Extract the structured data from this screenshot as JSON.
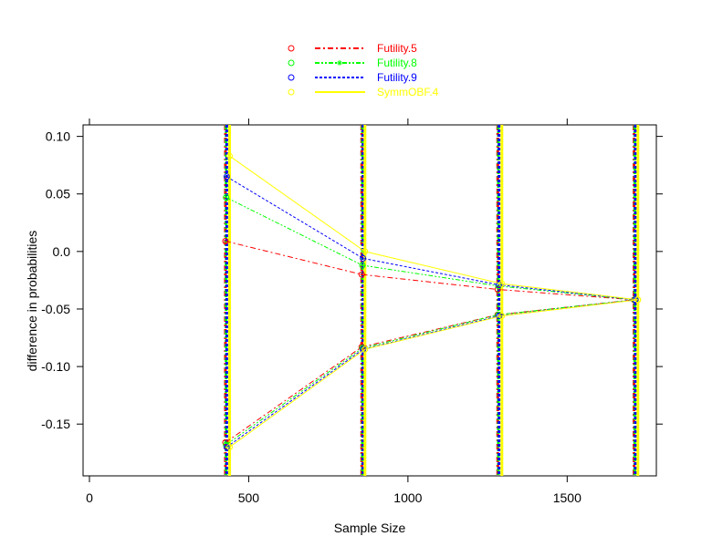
{
  "chart_data": {
    "type": "line",
    "title": "",
    "xlabel": "Sample Size",
    "ylabel": "difference in probabilities",
    "xlim": [
      -20,
      1780
    ],
    "ylim": [
      -0.195,
      0.11
    ],
    "xticks": [
      0,
      500,
      1000,
      1500
    ],
    "xtick_labels": [
      "0",
      "500",
      "1000",
      "1500"
    ],
    "yticks": [
      0.1,
      0.05,
      0.0,
      -0.05,
      -0.1,
      -0.15
    ],
    "ytick_labels": [
      "0.10",
      "0.05",
      "0.0",
      "-0.05",
      "-0.10",
      "-0.15"
    ],
    "grid": false,
    "legend_position": "top-center",
    "series": [
      {
        "name": "Futility.5",
        "color": "#ff0000",
        "line_style": "dash-dot",
        "x": [
          427,
          855,
          1282,
          1710
        ],
        "upper": [
          0.009,
          -0.02,
          -0.033,
          -0.042
        ],
        "lower": [
          -0.166,
          -0.083,
          -0.055,
          -0.042
        ]
      },
      {
        "name": "Futility.8",
        "color": "#00ff00",
        "line_style": "dash-dot-dot",
        "x": [
          429,
          857,
          1284,
          1712
        ],
        "upper": [
          0.047,
          -0.012,
          -0.03,
          -0.042
        ],
        "lower": [
          -0.168,
          -0.084,
          -0.055,
          -0.042
        ]
      },
      {
        "name": "Futility.9",
        "color": "#0000ff",
        "line_style": "dashed",
        "x": [
          431,
          859,
          1286,
          1714
        ],
        "upper": [
          0.065,
          -0.006,
          -0.029,
          -0.042
        ],
        "lower": [
          -0.17,
          -0.085,
          -0.056,
          -0.042
        ]
      },
      {
        "name": "SymmOBF.4",
        "color": "#ffff00",
        "line_style": "solid",
        "x": [
          440,
          865,
          1295,
          1722
        ],
        "upper": [
          0.083,
          0.0,
          -0.028,
          -0.042
        ],
        "lower": [
          -0.17,
          -0.085,
          -0.056,
          -0.042
        ]
      }
    ]
  }
}
